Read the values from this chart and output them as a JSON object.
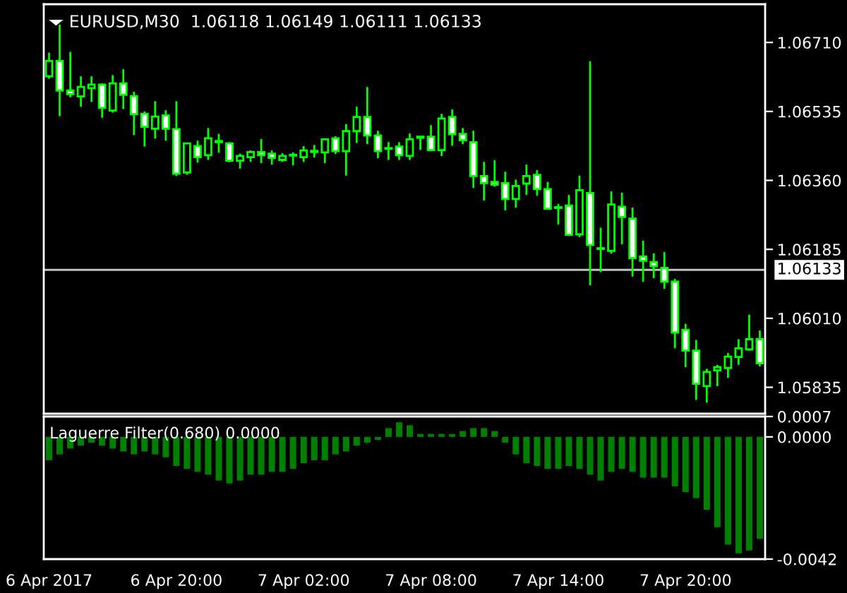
{
  "chart_data": [
    {
      "type": "candlestick",
      "title": "EURUSD,M30  1.06118 1.06149 1.06111 1.06133",
      "color": "#00ff00",
      "categories": [
        null,
        null,
        null,
        null,
        null,
        null,
        null,
        null,
        null,
        null,
        null,
        null,
        null,
        null,
        null,
        null,
        null,
        null,
        null,
        null,
        null,
        null,
        null,
        null,
        null,
        null,
        null,
        null,
        null,
        null,
        null,
        null,
        null,
        null,
        null,
        null,
        null,
        null,
        null,
        null,
        null,
        null,
        null,
        null,
        null,
        null,
        null,
        null,
        null,
        null,
        null,
        null,
        null,
        null,
        null,
        null,
        null,
        null,
        null,
        null,
        null,
        null,
        null,
        null,
        null,
        null,
        null,
        null
      ],
      "ohlc": [
        [
          1.06624,
          1.06684,
          1.06618,
          1.06663
        ],
        [
          1.06663,
          1.06755,
          1.06523,
          1.06588
        ],
        [
          1.06588,
          1.06686,
          1.06571,
          1.06579
        ],
        [
          1.06573,
          1.06624,
          1.06547,
          1.06597
        ],
        [
          1.06594,
          1.06624,
          1.06559,
          1.06603
        ],
        [
          1.06603,
          1.06606,
          1.06519,
          1.06544
        ],
        [
          1.06537,
          1.06627,
          1.06532,
          1.06606
        ],
        [
          1.06606,
          1.06642,
          1.06541,
          1.06577
        ],
        [
          1.06574,
          1.06585,
          1.06475,
          1.06528
        ],
        [
          1.06529,
          1.06535,
          1.06446,
          1.06496
        ],
        [
          1.06491,
          1.06561,
          1.06466,
          1.06522
        ],
        [
          1.06525,
          1.06538,
          1.06461,
          1.06491
        ],
        [
          1.0649,
          1.06561,
          1.06371,
          1.06377
        ],
        [
          1.0638,
          1.06454,
          1.06374,
          1.06454
        ],
        [
          1.06447,
          1.06461,
          1.06405,
          1.06419
        ],
        [
          1.06424,
          1.06493,
          1.06412,
          1.06467
        ],
        [
          1.0646,
          1.06478,
          1.0643,
          1.06457
        ],
        [
          1.06454,
          1.06457,
          1.06406,
          1.0641
        ],
        [
          1.0641,
          1.06428,
          1.0639,
          1.06422
        ],
        [
          1.06419,
          1.06436,
          1.06407,
          1.06432
        ],
        [
          1.06432,
          1.06465,
          1.06404,
          1.06424
        ],
        [
          1.06428,
          1.06436,
          1.064,
          1.06417
        ],
        [
          1.06412,
          1.06429,
          1.06407,
          1.06422
        ],
        [
          1.06425,
          1.06431,
          1.06398,
          1.06423
        ],
        [
          1.06419,
          1.06447,
          1.06407,
          1.06436
        ],
        [
          1.06435,
          1.0645,
          1.06418,
          1.06432
        ],
        [
          1.06431,
          1.06467,
          1.06404,
          1.06464
        ],
        [
          1.06467,
          1.06472,
          1.06427,
          1.06434
        ],
        [
          1.06434,
          1.06503,
          1.06372,
          1.06485
        ],
        [
          1.06485,
          1.06547,
          1.06455,
          1.06521
        ],
        [
          1.06521,
          1.06597,
          1.06452,
          1.06474
        ],
        [
          1.06474,
          1.06486,
          1.06416,
          1.06434
        ],
        [
          1.06442,
          1.06457,
          1.06412,
          1.0644
        ],
        [
          1.06446,
          1.06457,
          1.06412,
          1.06424
        ],
        [
          1.06422,
          1.06479,
          1.06412,
          1.06464
        ],
        [
          1.06471,
          1.06472,
          1.06437,
          1.06468
        ],
        [
          1.06471,
          1.065,
          1.06434,
          1.06437
        ],
        [
          1.06437,
          1.06529,
          1.06422,
          1.06517
        ],
        [
          1.06521,
          1.0654,
          1.06448,
          1.06477
        ],
        [
          1.06478,
          1.06493,
          1.06452,
          1.06462
        ],
        [
          1.06457,
          1.06486,
          1.06341,
          1.06371
        ],
        [
          1.06371,
          1.06407,
          1.06309,
          1.06353
        ],
        [
          1.06356,
          1.06411,
          1.06344,
          1.06349
        ],
        [
          1.06353,
          1.06382,
          1.06284,
          1.06313
        ],
        [
          1.06313,
          1.06362,
          1.06291,
          1.06346
        ],
        [
          1.06352,
          1.064,
          1.06323,
          1.06371
        ],
        [
          1.06374,
          1.06386,
          1.06321,
          1.06338
        ],
        [
          1.06338,
          1.06356,
          1.06288,
          1.06288
        ],
        [
          1.06292,
          1.063,
          1.06248,
          1.0629
        ],
        [
          1.06296,
          1.06323,
          1.06219,
          1.06222
        ],
        [
          1.06223,
          1.06372,
          1.06216,
          1.06335
        ],
        [
          1.06328,
          1.06662,
          1.06094,
          1.06196
        ],
        [
          1.06188,
          1.0624,
          1.06127,
          1.06186
        ],
        [
          1.06181,
          1.06332,
          1.06174,
          1.06299
        ],
        [
          1.06293,
          1.06329,
          1.06198,
          1.06267
        ],
        [
          1.06263,
          1.06291,
          1.06116,
          1.06163
        ],
        [
          1.06167,
          1.06207,
          1.06103,
          1.06156
        ],
        [
          1.06153,
          1.06175,
          1.06112,
          1.06142
        ],
        [
          1.06138,
          1.06178,
          1.06085,
          1.06103
        ],
        [
          1.06103,
          1.0611,
          1.05934,
          1.05974
        ],
        [
          1.05981,
          1.05996,
          1.05886,
          1.05928
        ],
        [
          1.05928,
          1.05955,
          1.05803,
          1.05844
        ],
        [
          1.05838,
          1.05882,
          1.05796,
          1.05874
        ],
        [
          1.05878,
          1.05892,
          1.05838,
          1.05886
        ],
        [
          1.05884,
          1.05922,
          1.05859,
          1.05913
        ],
        [
          1.05912,
          1.05957,
          1.05892,
          1.05934
        ],
        [
          1.05931,
          1.06019,
          1.05928,
          1.05957
        ],
        [
          1.05957,
          1.05979,
          1.05888,
          1.05896
        ]
      ],
      "ylim": [
        1.05768,
        1.06807
      ],
      "yticks": [
        {
          "value": 1.0671,
          "label": "1.06710"
        },
        {
          "value": 1.06535,
          "label": "1.06535"
        },
        {
          "value": 1.0636,
          "label": "1.06360"
        },
        {
          "value": 1.06185,
          "label": "1.06185"
        },
        {
          "value": 1.0601,
          "label": "1.06010"
        },
        {
          "value": 1.05835,
          "label": "1.05835"
        }
      ],
      "ref_lines": [
        {
          "axis": "y",
          "value": 1.06133,
          "label": "1.06133",
          "color": "#c0c0c0"
        }
      ],
      "tick_labels": "y"
    },
    {
      "type": "bar",
      "title": "Laguerre Filter(0.680) 0.0000",
      "color": "#008000",
      "categories": [
        "6 Apr 2017",
        null,
        null,
        null,
        null,
        null,
        null,
        null,
        null,
        null,
        null,
        null,
        "6 Apr 20:00",
        null,
        null,
        null,
        null,
        null,
        null,
        null,
        null,
        null,
        null,
        null,
        "7 Apr 02:00",
        null,
        null,
        null,
        null,
        null,
        null,
        null,
        null,
        null,
        null,
        null,
        "7 Apr 08:00",
        null,
        null,
        null,
        null,
        null,
        null,
        null,
        null,
        null,
        null,
        null,
        "7 Apr 14:00",
        null,
        null,
        null,
        null,
        null,
        null,
        null,
        null,
        null,
        null,
        null,
        "7 Apr 20:00",
        null,
        null,
        null,
        null,
        null,
        null,
        null
      ],
      "values": [
        -0.0008,
        -0.0006,
        -0.0004,
        -0.0003,
        -0.0002,
        -0.0003,
        -0.0004,
        -0.0005,
        -0.0006,
        -0.0005,
        -0.0006,
        -0.0007,
        -0.001,
        -0.0011,
        -0.0012,
        -0.0013,
        -0.0015,
        -0.0016,
        -0.0015,
        -0.0013,
        -0.0013,
        -0.0012,
        -0.0012,
        -0.0011,
        -0.0009,
        -0.0008,
        -0.0008,
        -0.0006,
        -0.0005,
        -0.0003,
        -0.0002,
        -0.0001,
        0.0003,
        0.0005,
        0.0004,
        0.0001,
        0.0001,
        0.0001,
        0.0001,
        0.0002,
        0.0003,
        0.0003,
        0.0002,
        -0.0002,
        -0.0006,
        -0.0009,
        -0.001,
        -0.0011,
        -0.0011,
        -0.001,
        -0.0011,
        -0.0013,
        -0.0015,
        -0.0012,
        -0.0011,
        -0.0012,
        -0.0014,
        -0.0014,
        -0.0014,
        -0.0017,
        -0.0019,
        -0.0021,
        -0.0025,
        -0.0031,
        -0.0037,
        -0.004,
        -0.0039,
        -0.0035
      ],
      "ylim": [
        -0.0042,
        0.0007
      ],
      "yticks": [
        {
          "value": 0.0007,
          "label": "0.0007"
        },
        {
          "value": 0,
          "label": "0.0000"
        },
        {
          "value": -0.0042,
          "label": "-0.0042"
        }
      ]
    }
  ]
}
